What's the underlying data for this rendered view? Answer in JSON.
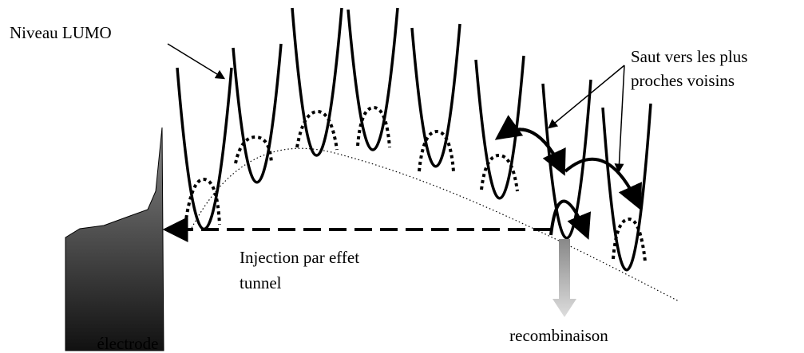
{
  "labels": {
    "lumo": "Niveau LUMO",
    "hop": [
      "Saut vers les plus",
      "proches voisins"
    ],
    "injection": [
      "Injection par effet",
      "tunnel"
    ],
    "electrode": "électrode",
    "recombination": "recombinaison"
  }
}
